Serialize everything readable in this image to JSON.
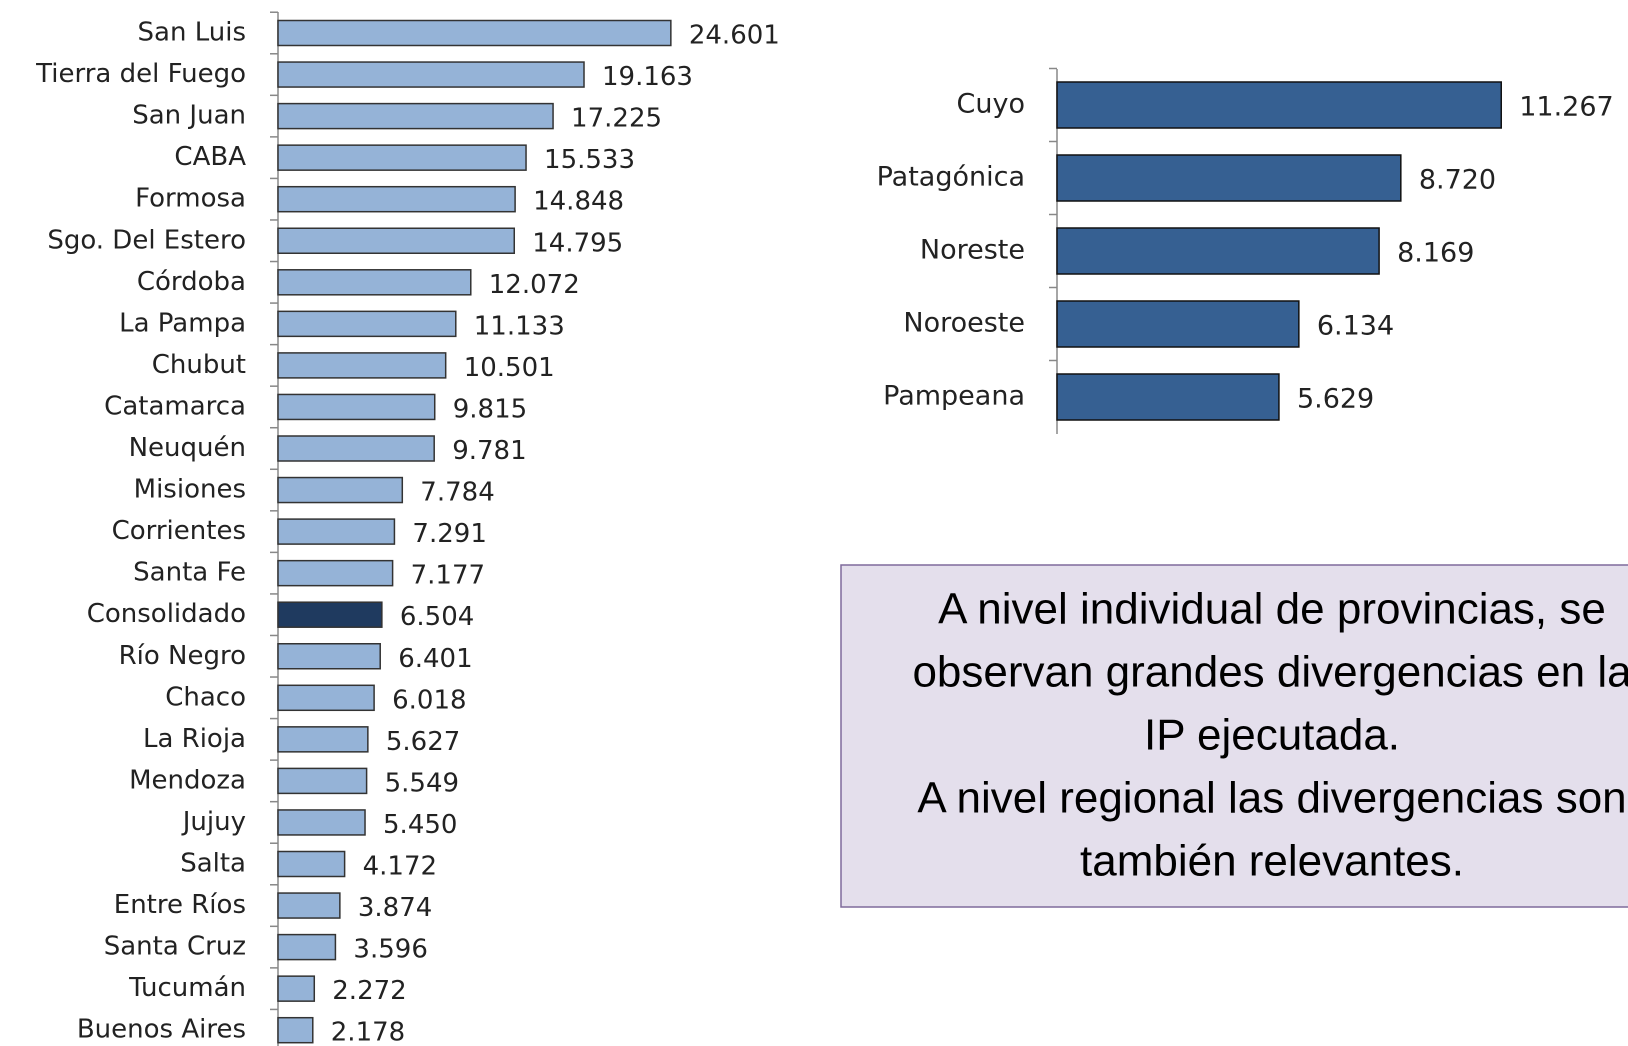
{
  "chart_data": [
    {
      "type": "hbar",
      "categories": [
        "San Luis",
        "Tierra del Fuego",
        "San Juan",
        "CABA",
        "Formosa",
        "Sgo. Del Estero",
        "Córdoba",
        "La Pampa",
        "Chubut",
        "Catamarca",
        "Neuquén",
        "Misiones",
        "Corrientes",
        "Santa Fe",
        "Consolidado",
        "Río Negro",
        "Chaco",
        "La Rioja",
        "Mendoza",
        "Jujuy",
        "Salta",
        "Entre Ríos",
        "Santa Cruz",
        "Tucumán",
        "Buenos Aires"
      ],
      "values": [
        24601,
        19163,
        17225,
        15533,
        14848,
        14795,
        12072,
        11133,
        10501,
        9815,
        9781,
        7784,
        7291,
        7177,
        6504,
        6401,
        6018,
        5627,
        5549,
        5450,
        4172,
        3874,
        3596,
        2272,
        2178
      ],
      "value_labels": [
        "24.601",
        "19.163",
        "17.225",
        "15.533",
        "14.848",
        "14.795",
        "12.072",
        "11.133",
        "10.501",
        "9.815",
        "9.781",
        "7.784",
        "7.291",
        "7.177",
        "6.504",
        "6.401",
        "6.018",
        "5.627",
        "5.549",
        "5.450",
        "4.172",
        "3.874",
        "3.596",
        "2.272",
        "2.178"
      ],
      "colors": [
        "#95b3d7",
        "#95b3d7",
        "#95b3d7",
        "#95b3d7",
        "#95b3d7",
        "#95b3d7",
        "#95b3d7",
        "#95b3d7",
        "#95b3d7",
        "#95b3d7",
        "#95b3d7",
        "#95b3d7",
        "#95b3d7",
        "#95b3d7",
        "#1f3a5f",
        "#95b3d7",
        "#95b3d7",
        "#95b3d7",
        "#95b3d7",
        "#95b3d7",
        "#95b3d7",
        "#95b3d7",
        "#95b3d7",
        "#95b3d7",
        "#95b3d7"
      ],
      "xlim": [
        0,
        32000
      ]
    },
    {
      "type": "hbar",
      "categories": [
        "Cuyo",
        "Patagónica",
        "Noreste",
        "Noroeste",
        "Pampeana"
      ],
      "values": [
        11267,
        8720,
        8169,
        6134,
        5629
      ],
      "value_labels": [
        "11.267",
        "8.720",
        "8.169",
        "6.134",
        "5.629"
      ],
      "colors": [
        "#366092",
        "#366092",
        "#366092",
        "#366092",
        "#366092"
      ],
      "xlim": [
        0,
        14000
      ]
    }
  ],
  "note_box": {
    "lines": [
      "A nivel individual de provincias, se",
      "observan grandes divergencias en la",
      "IP ejecutada.",
      "A nivel regional las divergencias son",
      "también relevantes."
    ]
  }
}
